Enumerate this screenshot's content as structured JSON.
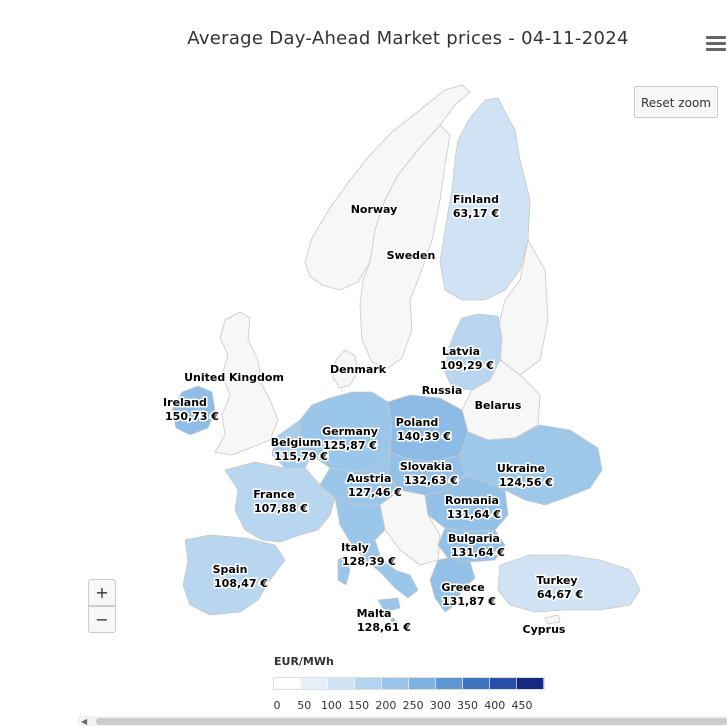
{
  "title": "Average Day-Ahead Market prices - 04-11-2024",
  "controls": {
    "reset_zoom": "Reset zoom",
    "zoom_in": "+",
    "zoom_out": "−"
  },
  "legend": {
    "title": "EUR/MWh",
    "ticks": [
      "0",
      "50",
      "100",
      "150",
      "200",
      "250",
      "300",
      "350",
      "400",
      "450"
    ],
    "colors": [
      "#ffffff",
      "#e6f0fa",
      "#cfe3f5",
      "#b5d4ef",
      "#9ac4e8",
      "#7fb2e0",
      "#5f95d2",
      "#3f74bf",
      "#2850a8",
      "#142a80"
    ]
  },
  "colors": {
    "no_data": "#f7f7f7",
    "border": "#c8c8c8"
  },
  "labels": {
    "norway": "Norway",
    "sweden": "Sweden",
    "finland": "Finland",
    "finland_price": "63,17 €",
    "denmark": "Denmark",
    "latvia": "Latvia",
    "latvia_price": "109,29 €",
    "russia": "Russia",
    "belarus": "Belarus",
    "uk": "United Kingdom",
    "ireland": "Ireland",
    "ireland_price": "150,73 €",
    "poland": "Poland",
    "poland_price": "140,39 €",
    "germany": "Germany",
    "germany_price": "125,87 €",
    "belgium": "Belgium",
    "belgium_price": "115,79 €",
    "slovakia": "Slovakia",
    "slovakia_price": "132,63 €",
    "ukraine": "Ukraine",
    "ukraine_price": "124,56 €",
    "austria": "Austria",
    "austria_price": "127,46 €",
    "france": "France",
    "france_price": "107,88 €",
    "romania": "Romania",
    "romania_price": "131,64 €",
    "bulgaria": "Bulgaria",
    "bulgaria_price": "131,64 €",
    "italy": "Italy",
    "italy_price": "128,39 €",
    "spain": "Spain",
    "spain_price": "108,47 €",
    "turkey": "Turkey",
    "turkey_price": "64,67 €",
    "greece": "Greece",
    "greece_price": "131,87 €",
    "malta": "Malta",
    "malta_price": "128,61 €",
    "cyprus": "Cyprus"
  }
}
